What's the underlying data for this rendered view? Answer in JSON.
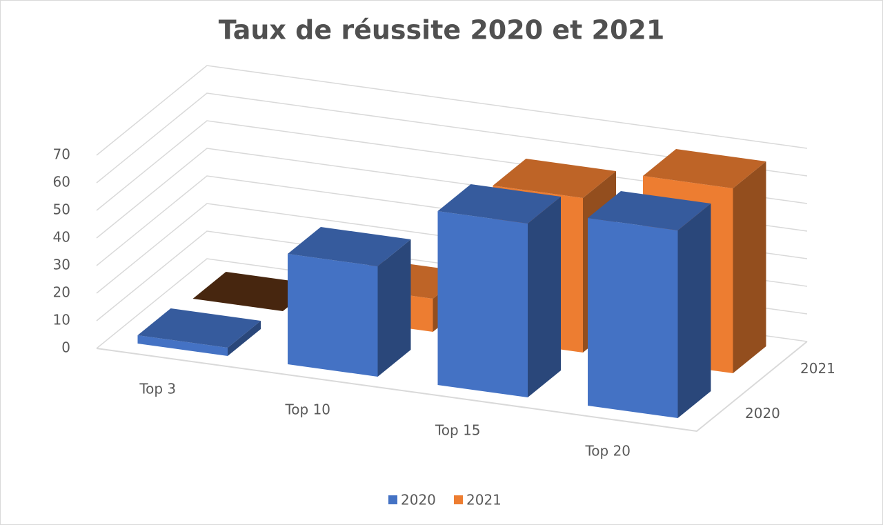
{
  "chart_data": {
    "type": "bar3d",
    "title": "Taux de réussite 2020 et 2021",
    "categories": [
      "Top 3",
      "Top 10",
      "Top 15",
      "Top 20"
    ],
    "series": [
      {
        "name": "2020",
        "color": "#4472c4",
        "values": [
          3,
          40,
          63,
          68
        ]
      },
      {
        "name": "2021",
        "color": "#ed7d31",
        "values": [
          0,
          12,
          56,
          67
        ]
      }
    ],
    "ylim": [
      0,
      70
    ],
    "yticks": [
      0,
      10,
      20,
      30,
      40,
      50,
      60,
      70
    ],
    "grid": true,
    "legend": "bottom"
  }
}
